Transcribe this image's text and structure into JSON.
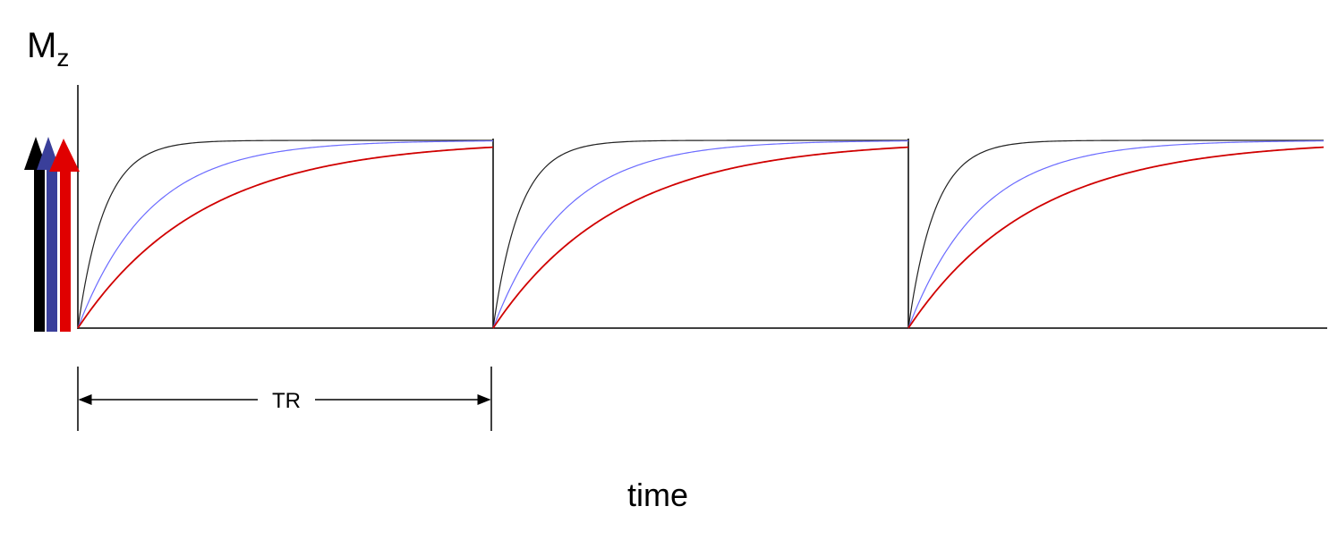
{
  "labels": {
    "y_axis": "M",
    "y_axis_subscript": "z",
    "interval": "TR",
    "x_axis": "time"
  }
}
